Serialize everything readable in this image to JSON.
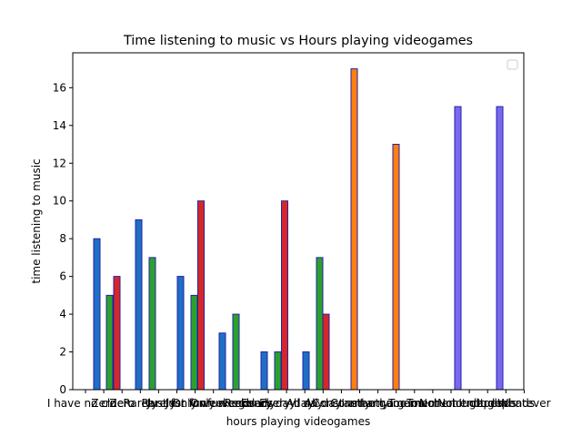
{
  "chart_data": {
    "type": "bar",
    "title": "Time listening to music vs Hours playing videogames",
    "xlabel": "hours playing videogames",
    "ylabel": "time listening to music",
    "ylim": [
      0,
      17.85
    ],
    "yticks": [
      0,
      2,
      4,
      6,
      8,
      10,
      12,
      14,
      16
    ],
    "legend": "top-right",
    "grid": false,
    "categories": [
      "I have no clue",
      "Zero",
      "Zero",
      "Rarely",
      "Rarely",
      "Just for fun",
      "Just for fun",
      "Only weekends",
      "Only weekends",
      "Regularly",
      "Every day",
      "Every day",
      "All day",
      "All day",
      "Constantly",
      "Constantly",
      "I am a gamer",
      "I am a gamer",
      "Too much",
      "Too much",
      "Not enough",
      "Not enough",
      "It depends",
      "It depends",
      "Whatever"
    ],
    "bar_groups": [
      {
        "name": "",
        "color": "#1f6fc4",
        "edge": "#2222aa",
        "values": [
          8,
          9,
          6,
          3,
          2,
          2
        ]
      },
      {
        "name": "",
        "color": "#2ca02c",
        "edge": "#2222aa",
        "values": [
          5,
          7,
          5,
          4,
          2,
          7
        ]
      },
      {
        "name": "",
        "color": "#d62728",
        "edge": "#2222aa",
        "values": [
          6,
          null,
          10,
          null,
          10,
          4
        ]
      },
      {
        "name": "",
        "color": "#ff7f0e",
        "edge": "#2222aa",
        "values": [
          17,
          13
        ]
      },
      {
        "name": "",
        "color": "#7b68ee",
        "edge": "#2222aa",
        "values": [
          15,
          15
        ]
      }
    ]
  }
}
